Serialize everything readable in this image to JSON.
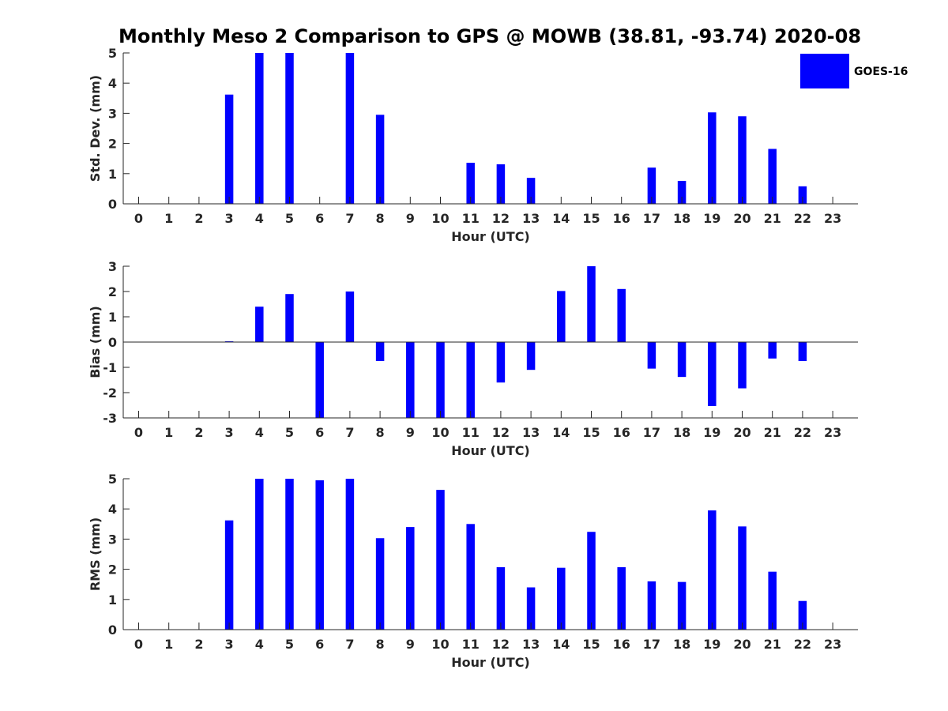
{
  "colors": {
    "bar": "#0000ff",
    "axis": "#262626",
    "background": "#ffffff"
  },
  "chart_data": [
    {
      "type": "bar",
      "title": "Monthly Meso 2 Comparison to GPS @ MOWB (38.81, -93.74) 2020-08",
      "xlabel": "Hour (UTC)",
      "ylabel": "Std. Dev. (mm)",
      "ylim": [
        0,
        5
      ],
      "yticks": [
        0,
        1,
        2,
        3,
        4,
        5
      ],
      "categories": [
        "0",
        "1",
        "2",
        "3",
        "4",
        "5",
        "6",
        "7",
        "8",
        "9",
        "10",
        "11",
        "12",
        "13",
        "14",
        "15",
        "16",
        "17",
        "18",
        "19",
        "20",
        "21",
        "22",
        "23"
      ],
      "legend": {
        "position": "top-right",
        "entries": [
          "GOES-16"
        ]
      },
      "series": [
        {
          "name": "GOES-16",
          "values": [
            null,
            null,
            null,
            3.62,
            5,
            5,
            null,
            5,
            2.95,
            null,
            null,
            1.36,
            1.31,
            0.86,
            null,
            null,
            null,
            1.2,
            0.76,
            3.03,
            2.9,
            1.82,
            0.58,
            null
          ]
        }
      ]
    },
    {
      "type": "bar",
      "xlabel": "Hour (UTC)",
      "ylabel": "Bias (mm)",
      "ylim": [
        -3,
        3
      ],
      "yticks": [
        -3,
        -2,
        -1,
        0,
        1,
        2,
        3
      ],
      "zero_line": true,
      "categories": [
        "0",
        "1",
        "2",
        "3",
        "4",
        "5",
        "6",
        "7",
        "8",
        "9",
        "10",
        "11",
        "12",
        "13",
        "14",
        "15",
        "16",
        "17",
        "18",
        "19",
        "20",
        "21",
        "22",
        "23"
      ],
      "series": [
        {
          "name": "GOES-16",
          "values": [
            null,
            null,
            null,
            0.03,
            1.4,
            1.9,
            -3,
            2.0,
            -0.75,
            -3,
            -3,
            -3,
            -1.6,
            -1.1,
            2.02,
            3,
            2.1,
            -1.05,
            -1.38,
            -2.53,
            -1.83,
            -0.65,
            -0.75,
            null
          ]
        }
      ]
    },
    {
      "type": "bar",
      "xlabel": "Hour (UTC)",
      "ylabel": "RMS (mm)",
      "ylim": [
        0,
        5
      ],
      "yticks": [
        0,
        1,
        2,
        3,
        4,
        5
      ],
      "categories": [
        "0",
        "1",
        "2",
        "3",
        "4",
        "5",
        "6",
        "7",
        "8",
        "9",
        "10",
        "11",
        "12",
        "13",
        "14",
        "15",
        "16",
        "17",
        "18",
        "19",
        "20",
        "21",
        "22",
        "23"
      ],
      "series": [
        {
          "name": "GOES-16",
          "values": [
            null,
            null,
            null,
            3.62,
            5,
            5,
            4.95,
            5,
            3.03,
            3.4,
            4.63,
            3.5,
            2.07,
            1.4,
            2.05,
            3.24,
            2.07,
            1.6,
            1.58,
            3.95,
            3.42,
            1.92,
            0.95,
            null
          ]
        }
      ]
    }
  ]
}
